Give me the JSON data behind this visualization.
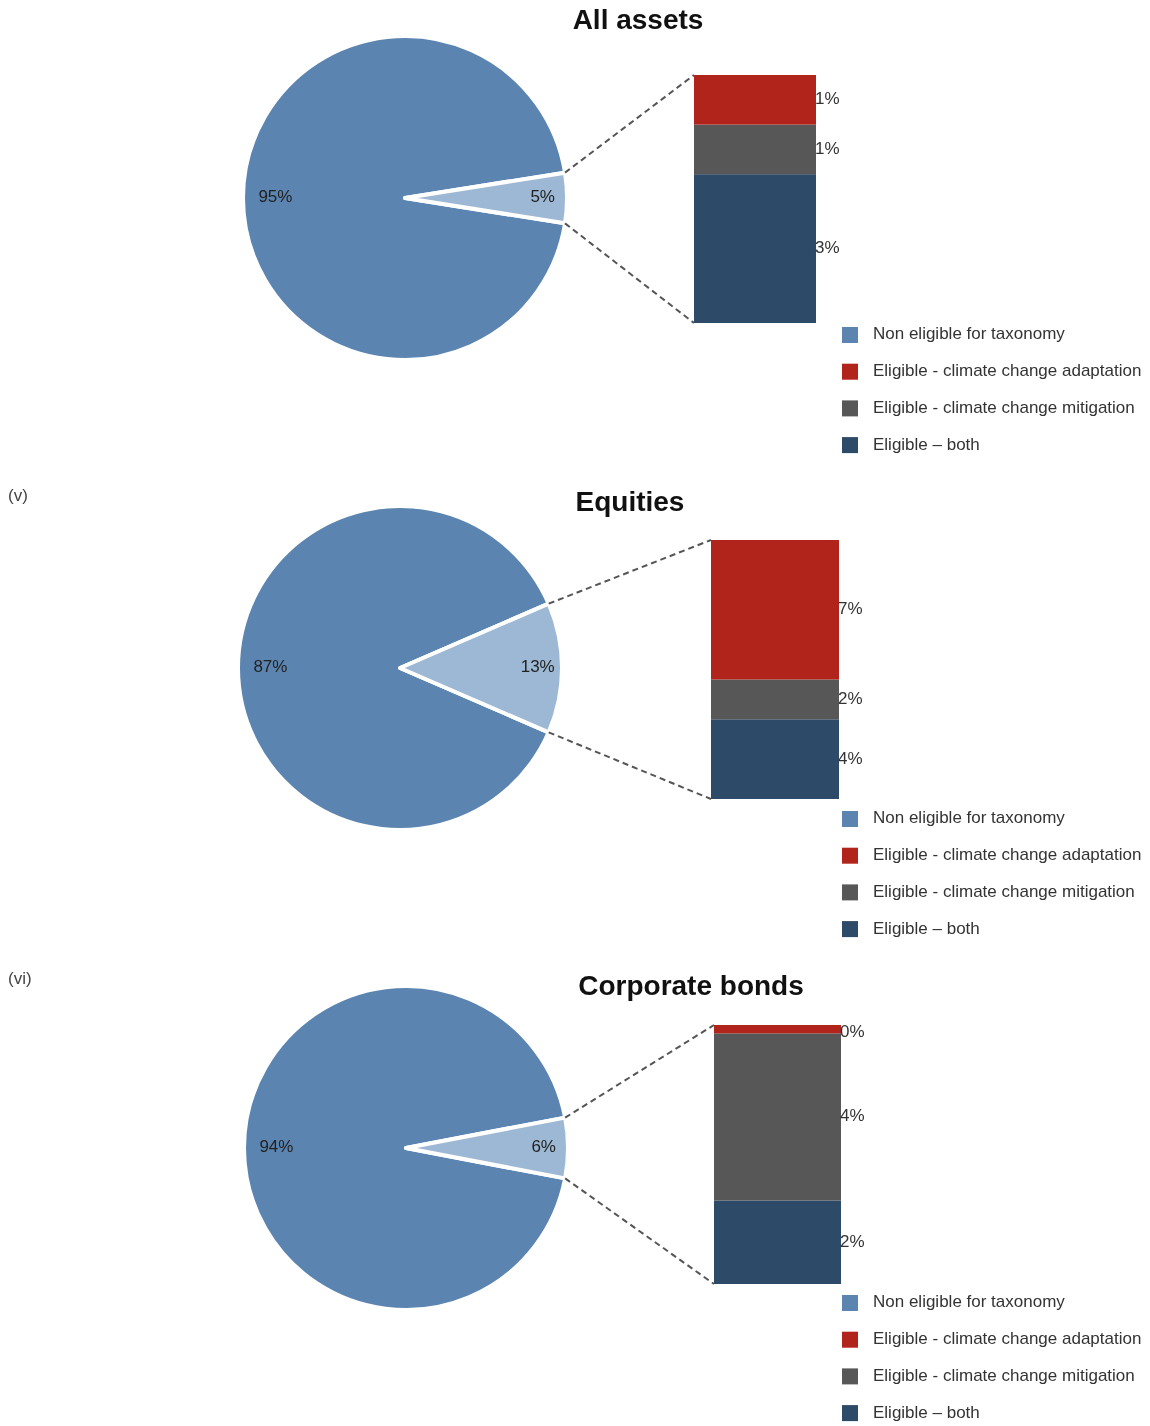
{
  "chart_data": [
    {
      "type": "pie",
      "title": "All assets",
      "categories": [
        "Non eligible for taxonomy",
        null
      ],
      "values": [
        95,
        5
      ],
      "value_labels": [
        "95%",
        "5%"
      ],
      "colors": [
        "#5b85b0",
        "#9db8d4"
      ],
      "legend": "bottom right"
    },
    {
      "type": "bar",
      "stacked": true,
      "categories": [
        null
      ],
      "legend": "bottom right",
      "series": [
        {
          "name": "Eligible – both",
          "color": "#2d4a68",
          "values": [
            3
          ],
          "value_labels": [
            "3%"
          ]
        },
        {
          "name": "Eligible - climate change mitigation",
          "color": "#575757",
          "values": [
            1
          ],
          "value_labels": [
            "1%"
          ]
        },
        {
          "name": "Eligible - climate change adaptation",
          "color": "#b0241b",
          "values": [
            1
          ],
          "value_labels": [
            "1%"
          ]
        }
      ]
    },
    {
      "type": "pie",
      "title": "Equities",
      "annotations": [
        "(v)"
      ],
      "categories": [
        "Non eligible for taxonomy",
        null
      ],
      "values": [
        87,
        13
      ],
      "value_labels": [
        "87%",
        "13%"
      ],
      "colors": [
        "#5b85b0",
        "#9db8d4"
      ],
      "legend": "bottom right"
    },
    {
      "type": "bar",
      "stacked": true,
      "categories": [
        null
      ],
      "legend": "bottom right",
      "series": [
        {
          "name": "Eligible – both",
          "color": "#2d4a68",
          "values": [
            4
          ],
          "value_labels": [
            "4%"
          ]
        },
        {
          "name": "Eligible - climate change mitigation",
          "color": "#575757",
          "values": [
            2
          ],
          "value_labels": [
            "2%"
          ]
        },
        {
          "name": "Eligible - climate change adaptation",
          "color": "#b0241b",
          "values": [
            7
          ],
          "value_labels": [
            "7%"
          ]
        }
      ]
    },
    {
      "type": "pie",
      "title": "Corporate bonds",
      "annotations": [
        "(vi)"
      ],
      "categories": [
        "Non eligible for taxonomy",
        null
      ],
      "values": [
        94,
        6
      ],
      "value_labels": [
        "94%",
        "6%"
      ],
      "colors": [
        "#5b85b0",
        "#9db8d4"
      ],
      "legend": "bottom right"
    },
    {
      "type": "bar",
      "stacked": true,
      "categories": [
        null
      ],
      "legend": "bottom right",
      "series": [
        {
          "name": "Eligible – both",
          "color": "#2d4a68",
          "values": [
            2
          ],
          "value_labels": [
            "2%"
          ]
        },
        {
          "name": "Eligible - climate change mitigation",
          "color": "#575757",
          "values": [
            4
          ],
          "value_labels": [
            "4%"
          ]
        },
        {
          "name": "Eligible - climate change adaptation",
          "color": "#b0241b",
          "values": [
            0.2
          ],
          "value_labels": [
            "0%"
          ]
        }
      ]
    }
  ]
}
